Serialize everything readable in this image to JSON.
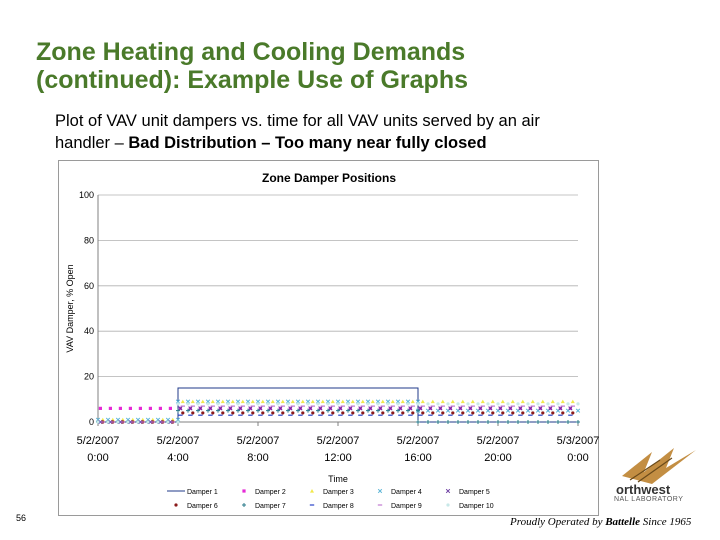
{
  "slide": {
    "title_line1": "Zone Heating and Cooling Demands",
    "title_line2": "(continued): Example Use of Graphs",
    "subtitle_line1": "Plot of VAV unit dampers vs. time for all VAV units served by an air",
    "subtitle_prefix": "handler – ",
    "subtitle_bold": "Bad Distribution – Too many near fully closed",
    "page_number": "56",
    "footer_prefix": "Proudly Operated by ",
    "footer_brand": "Battelle",
    "footer_suffix": " Since 1965",
    "logo_name": "orthwest",
    "logo_lab": "NAL LABORATORY",
    "title_color": "#4a7a2a"
  },
  "chart_data": {
    "type": "line",
    "title": "Zone Damper Positions",
    "xlabel": "Time",
    "ylabel": "VAV Damper, % Open",
    "ylim": [
      0,
      100
    ],
    "yticks": [
      0,
      20,
      40,
      60,
      80,
      100
    ],
    "xticks": [
      {
        "hour": 0,
        "date": "5/2/2007",
        "time": "0:00"
      },
      {
        "hour": 4,
        "date": "5/2/2007",
        "time": "4:00"
      },
      {
        "hour": 8,
        "date": "5/2/2007",
        "time": "8:00"
      },
      {
        "hour": 12,
        "date": "5/2/2007",
        "time": "12:00"
      },
      {
        "hour": 16,
        "date": "5/2/2007",
        "time": "16:00"
      },
      {
        "hour": 20,
        "date": "5/2/2007",
        "time": "20:00"
      },
      {
        "hour": 24,
        "date": "5/3/2007",
        "time": "0:00"
      }
    ],
    "grid": "horizontal",
    "legend_position": "bottom",
    "series": [
      {
        "name": "Damper 1",
        "marker": "line",
        "color": "#1f3a8a",
        "segments": [
          [
            0,
            0,
            4,
            0
          ],
          [
            4,
            15,
            16,
            15
          ],
          [
            16,
            0,
            24,
            0
          ]
        ]
      },
      {
        "name": "Damper 2",
        "marker": "square",
        "color": "#e62ad6",
        "segments": [
          [
            0,
            6,
            4,
            6
          ],
          [
            4,
            6,
            16,
            6
          ],
          [
            16,
            6,
            24,
            6
          ]
        ]
      },
      {
        "name": "Damper 3",
        "marker": "triangle",
        "color": "#f2e84a",
        "segments": [
          [
            0,
            1,
            4,
            1
          ],
          [
            4,
            9,
            16,
            9
          ],
          [
            16,
            9,
            24,
            9
          ]
        ]
      },
      {
        "name": "Damper 4",
        "marker": "x",
        "color": "#5ab4d6",
        "segments": [
          [
            0,
            1,
            4,
            1
          ],
          [
            4,
            9,
            16,
            9
          ],
          [
            16,
            5,
            24,
            5
          ]
        ]
      },
      {
        "name": "Damper 5",
        "marker": "x",
        "color": "#6a3aa0",
        "segments": [
          [
            0,
            0,
            4,
            0
          ],
          [
            4,
            6,
            16,
            6
          ],
          [
            16,
            6,
            24,
            6
          ]
        ]
      },
      {
        "name": "Damper 6",
        "marker": "circle",
        "color": "#8a1a1a",
        "segments": [
          [
            0,
            0,
            4,
            0
          ],
          [
            4,
            4,
            16,
            4
          ],
          [
            16,
            4,
            24,
            4
          ]
        ]
      },
      {
        "name": "Damper 7",
        "marker": "plus",
        "color": "#2a7a8a",
        "segments": [
          [
            0,
            0,
            4,
            0
          ],
          [
            4,
            5,
            16,
            5
          ],
          [
            16,
            0,
            24,
            0
          ]
        ]
      },
      {
        "name": "Damper 8",
        "marker": "dash",
        "color": "#2a44c8",
        "segments": [
          [
            0,
            0,
            4,
            0
          ],
          [
            4,
            3,
            16,
            3
          ],
          [
            16,
            3,
            24,
            3
          ]
        ]
      },
      {
        "name": "Damper 9",
        "marker": "dash",
        "color": "#c07ad0",
        "segments": [
          [
            0,
            0,
            4,
            0
          ],
          [
            4,
            7,
            16,
            7
          ],
          [
            16,
            7,
            24,
            7
          ]
        ]
      },
      {
        "name": "Damper 10",
        "marker": "circle",
        "color": "#c8e8e8",
        "segments": [
          [
            0,
            0,
            4,
            0
          ],
          [
            4,
            8,
            16,
            8
          ],
          [
            16,
            8,
            24,
            8
          ]
        ]
      }
    ]
  }
}
